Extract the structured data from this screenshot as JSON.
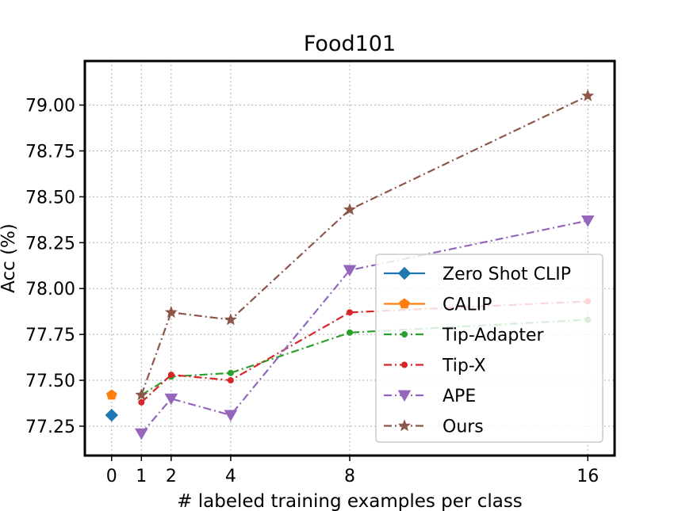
{
  "chart_data": {
    "type": "line",
    "title": "Food101",
    "xlabel": "# labeled training examples per class",
    "ylabel": "Acc (%)",
    "xlim": [
      -0.9,
      16.9
    ],
    "ylim": [
      77.09,
      79.24
    ],
    "xticks": [
      0,
      1,
      2,
      4,
      8,
      16
    ],
    "xtick_labels": [
      "0",
      "1",
      "2",
      "4",
      "8",
      "16"
    ],
    "yticks": [
      77.25,
      77.5,
      77.75,
      78.0,
      78.25,
      78.5,
      78.75,
      79.0
    ],
    "ytick_labels": [
      "77.25",
      "77.50",
      "77.75",
      "78.00",
      "78.25",
      "78.50",
      "78.75",
      "79.00"
    ],
    "grid": true,
    "legend_position": "lower-right",
    "series": [
      {
        "name": "Zero Shot CLIP",
        "color": "#1f77b4",
        "marker": "diamond",
        "linestyle": "solid",
        "x": [
          0
        ],
        "y": [
          77.31
        ]
      },
      {
        "name": "CALIP",
        "color": "#ff7f0e",
        "marker": "pentagon",
        "linestyle": "solid",
        "x": [
          0
        ],
        "y": [
          77.42
        ]
      },
      {
        "name": "Tip-Adapter",
        "color": "#2ca02c",
        "marker": "dot",
        "linestyle": "dashdot",
        "x": [
          1,
          2,
          4,
          8,
          16
        ],
        "y": [
          77.42,
          77.52,
          77.54,
          77.76,
          77.83
        ]
      },
      {
        "name": "Tip-X",
        "color": "#d62728",
        "marker": "dot",
        "linestyle": "dashdot",
        "x": [
          1,
          2,
          4,
          8,
          16
        ],
        "y": [
          77.38,
          77.53,
          77.5,
          77.87,
          77.93
        ]
      },
      {
        "name": "APE",
        "color": "#9467bd",
        "marker": "triangle-down",
        "linestyle": "dashdot",
        "x": [
          1,
          2,
          4,
          8,
          16
        ],
        "y": [
          77.21,
          77.4,
          77.31,
          78.1,
          78.37
        ]
      },
      {
        "name": "Ours",
        "color": "#8c564b",
        "marker": "star",
        "linestyle": "dashdot",
        "x": [
          1,
          2,
          4,
          8,
          16
        ],
        "y": [
          77.42,
          77.87,
          77.83,
          78.43,
          79.05
        ]
      }
    ]
  }
}
